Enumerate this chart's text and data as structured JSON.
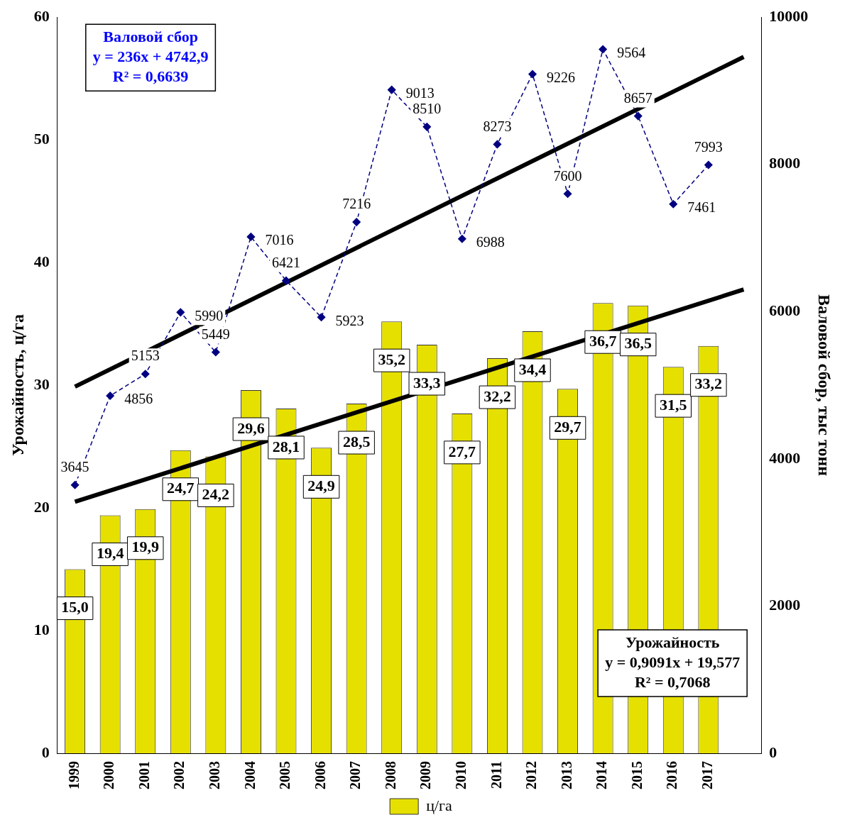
{
  "chart_data": {
    "type": "bar",
    "categories": [
      "1999",
      "2000",
      "2001",
      "2002",
      "2003",
      "2004",
      "2005",
      "2006",
      "2007",
      "2008",
      "2009",
      "2010",
      "2011",
      "2012",
      "2013",
      "2014",
      "2015",
      "2016",
      "2017",
      null
    ],
    "ylabel": "Урожайность, ц/га",
    "y2label": "Валовой сбор, тыс тонн",
    "ylim": [
      0,
      60
    ],
    "yticks": [
      0,
      10,
      20,
      30,
      40,
      50,
      60
    ],
    "y2lim": [
      0,
      10000
    ],
    "y2ticks": [
      0,
      2000,
      4000,
      6000,
      8000,
      10000
    ],
    "legend": "bottom",
    "series": [
      {
        "name": "ц/га",
        "color": "#e6e000",
        "values": [
          15.0,
          19.4,
          19.9,
          24.7,
          24.2,
          29.6,
          28.1,
          24.9,
          28.5,
          35.2,
          33.3,
          27.7,
          32.2,
          34.4,
          29.7,
          36.7,
          36.5,
          31.5,
          33.2,
          null
        ],
        "value_labels": [
          "15,0",
          "19,4",
          "19,9",
          "24,7",
          "24,2",
          "29,6",
          "28,1",
          "24,9",
          "28,5",
          "35,2",
          "33,3",
          "27,7",
          "32,2",
          "34,4",
          "29,7",
          "36,7",
          "36,5",
          "31,5",
          "33,2",
          null
        ]
      },
      {
        "type": "line",
        "axis": "y2",
        "color": "#000080",
        "marker": "diamond",
        "line_style": "dashed",
        "values": [
          3645,
          4856,
          5153,
          5990,
          5449,
          7016,
          6421,
          5923,
          7216,
          9013,
          8510,
          6988,
          8273,
          9226,
          7600,
          9564,
          8657,
          7461,
          7993,
          null
        ],
        "value_labels": [
          "3645",
          "4856",
          "5153",
          "5990",
          "5449",
          "7016",
          "6421",
          "5923",
          "7216",
          "9013",
          "8510",
          "6988",
          "8273",
          "9226",
          "7600",
          "9564",
          "8657",
          "7461",
          "7993",
          null
        ]
      },
      {
        "type": "line",
        "color": "#000000",
        "marker": "none",
        "line_style": "solid",
        "values": [
          20.5,
          null,
          null,
          null,
          null,
          null,
          null,
          null,
          null,
          null,
          null,
          null,
          null,
          null,
          null,
          null,
          null,
          null,
          null,
          37.8
        ]
      },
      {
        "type": "line",
        "axis": "y2",
        "color": "#000000",
        "marker": "none",
        "line_style": "solid",
        "values": [
          4980,
          null,
          null,
          null,
          null,
          null,
          null,
          null,
          null,
          null,
          null,
          null,
          null,
          null,
          null,
          null,
          null,
          null,
          null,
          9460
        ]
      }
    ],
    "annotations": [
      "Валовой сбор\ny = 236x + 4742,9\nR² = 0,6639",
      "Урожайность\ny = 0,9091x + 19,577\nR² = 0,7068"
    ]
  }
}
